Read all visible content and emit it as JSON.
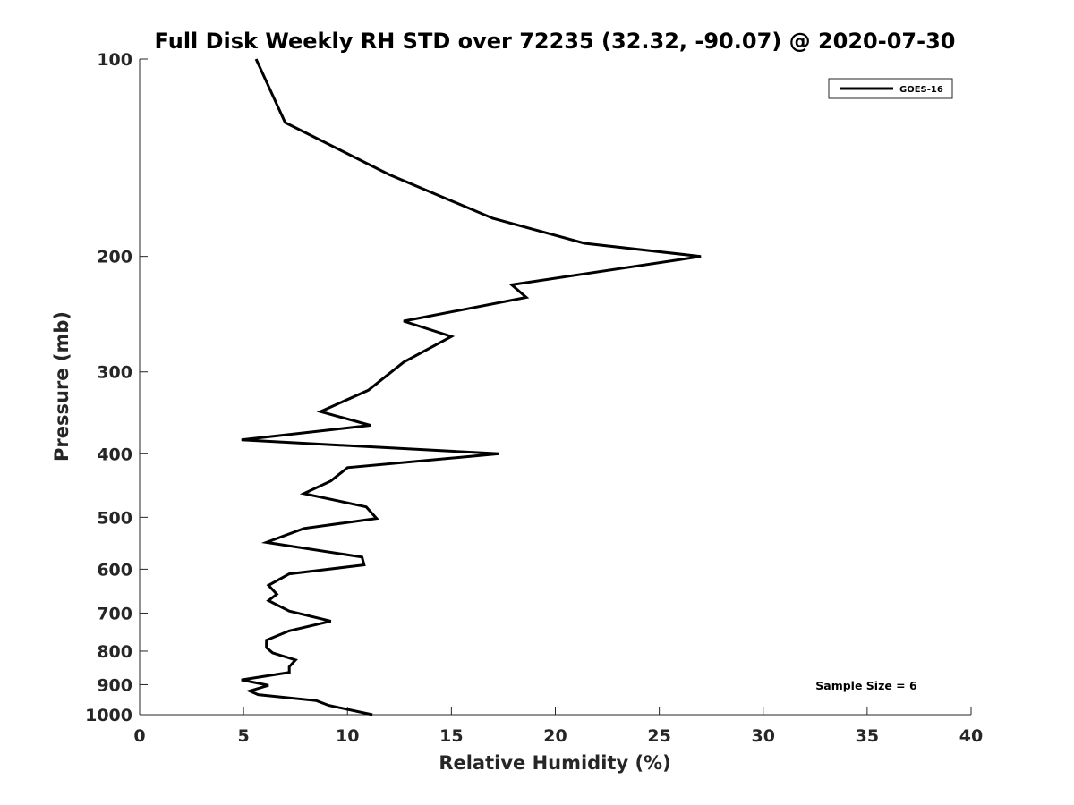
{
  "chart_data": {
    "type": "line",
    "title": "Full Disk Weekly RH STD over 72235 (32.32, -90.07) @ 2020-07-30",
    "xlabel": "Relative Humidity (%)",
    "ylabel": "Pressure (mb)",
    "xlim": [
      0,
      40
    ],
    "ylim": [
      100,
      1000
    ],
    "yscale": "log",
    "y_reversed": true,
    "x_ticks": [
      "0",
      "5",
      "10",
      "15",
      "20",
      "25",
      "30",
      "35",
      "40"
    ],
    "y_ticks": [
      "100",
      "200",
      "300",
      "400",
      "500",
      "600",
      "700",
      "800",
      "900",
      "1000"
    ],
    "grid": false,
    "legend": {
      "placement": "top-right",
      "entries": [
        "GOES-16"
      ]
    },
    "annotation": "Sample Size = 6",
    "series": [
      {
        "name": "GOES-16",
        "color": "#000000",
        "x": [
          5.6,
          7.0,
          12.0,
          17.0,
          21.4,
          27.0,
          17.9,
          18.6,
          12.7,
          15.0,
          12.7,
          11.0,
          8.7,
          11.1,
          4.9,
          17.3,
          10.0,
          9.2,
          7.9,
          10.9,
          11.4,
          7.9,
          6.1,
          10.7,
          10.8,
          7.2,
          6.2,
          6.6,
          6.2,
          7.2,
          9.2,
          7.2,
          6.1,
          6.1,
          6.4,
          7.5,
          7.2,
          7.2,
          4.9,
          6.2,
          5.3,
          5.7,
          8.5,
          9.1,
          11.2
        ],
        "y": [
          100,
          125,
          150,
          175,
          191,
          200,
          221,
          231,
          251,
          265,
          290,
          320,
          345,
          362,
          381,
          400,
          420,
          440,
          460,
          482,
          502,
          520,
          546,
          575,
          591,
          610,
          635,
          655,
          670,
          695,
          720,
          745,
          770,
          790,
          805,
          825,
          845,
          862,
          885,
          902,
          920,
          932,
          952,
          968,
          1000
        ]
      }
    ]
  }
}
